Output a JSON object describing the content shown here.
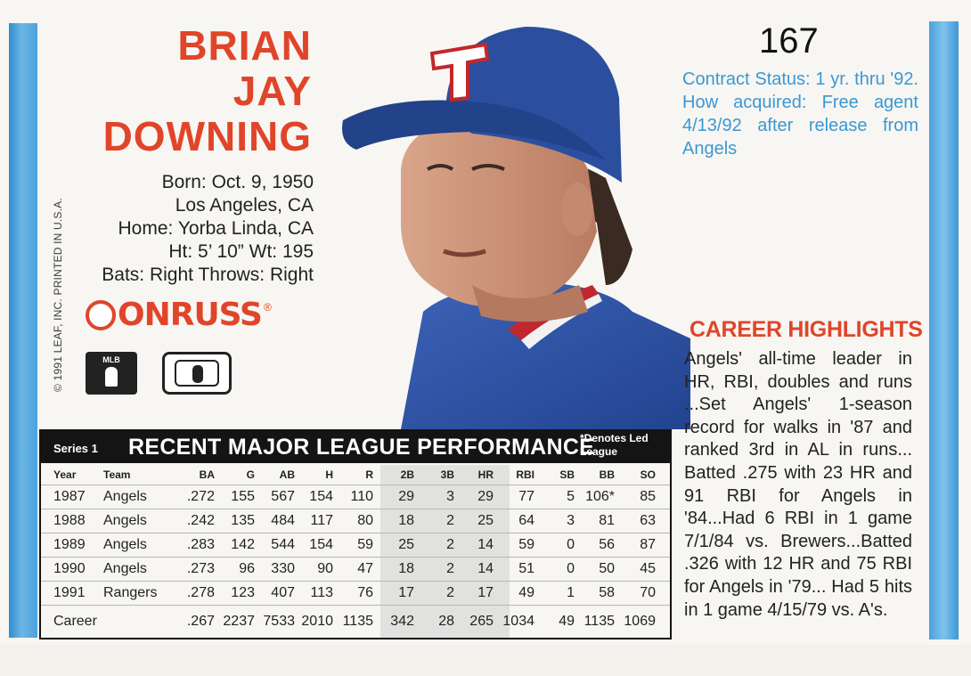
{
  "player": {
    "name_lines": [
      "BRIAN",
      "JAY",
      "DOWNING"
    ],
    "bio": [
      "Born: Oct. 9, 1950",
      "Los Angeles, CA",
      "Home: Yorba Linda, CA",
      "Ht: 5’ 10”  Wt: 195",
      "Bats: Right  Throws: Right"
    ]
  },
  "card_number": "167",
  "brand": {
    "logo_text": "ONRUSS",
    "reg": "®",
    "mlb_text": "MLB"
  },
  "copyright": "© 1991 LEAF, INC. PRINTED IN U.S.A.",
  "contract": "Contract Status: 1 yr. thru '92. How acquired: Free agent 4/13/92 after release from Angels",
  "highlights": {
    "title": "CAREER HIGHLIGHTS",
    "body": "Angels' all-time leader in HR, RBI, doubles and runs ...Set Angels' 1-season record for walks in '87 and ranked 3rd in AL in runs... Batted .275 with 23 HR and 91 RBI for Angels in '84...Had 6 RBI in 1 game 7/1/84 vs. Brewers...Batted .326 with 12 HR and 75 RBI for Angels in '79... Had 5 hits in 1 game 4/15/79 vs. A's."
  },
  "stats": {
    "series": "Series 1",
    "title": "RECENT MAJOR LEAGUE PERFORMANCE",
    "note": "*Denotes Led League",
    "columns": [
      "Year",
      "Team",
      "BA",
      "G",
      "AB",
      "H",
      "R",
      "2B",
      "3B",
      "HR",
      "RBI",
      "SB",
      "BB",
      "SO"
    ],
    "rows": [
      [
        "1987",
        "Angels",
        ".272",
        "155",
        "567",
        "154",
        "110",
        "29",
        "3",
        "29",
        "77",
        "5",
        "106*",
        "85"
      ],
      [
        "1988",
        "Angels",
        ".242",
        "135",
        "484",
        "117",
        "80",
        "18",
        "2",
        "25",
        "64",
        "3",
        "81",
        "63"
      ],
      [
        "1989",
        "Angels",
        ".283",
        "142",
        "544",
        "154",
        "59",
        "25",
        "2",
        "14",
        "59",
        "0",
        "56",
        "87"
      ],
      [
        "1990",
        "Angels",
        ".273",
        "96",
        "330",
        "90",
        "47",
        "18",
        "2",
        "14",
        "51",
        "0",
        "50",
        "45"
      ],
      [
        "1991",
        "Rangers",
        ".278",
        "123",
        "407",
        "113",
        "76",
        "17",
        "2",
        "17",
        "49",
        "1",
        "58",
        "70"
      ],
      [
        "Career",
        "",
        ".267",
        "2237",
        "7533",
        "2010",
        "1135",
        "342",
        "28",
        "265",
        "1034",
        "49",
        "1135",
        "1069"
      ]
    ]
  },
  "colors": {
    "red": "#e0452a",
    "blue": "#3a98d4",
    "cap": "#2b4f9e",
    "black": "#141414"
  }
}
